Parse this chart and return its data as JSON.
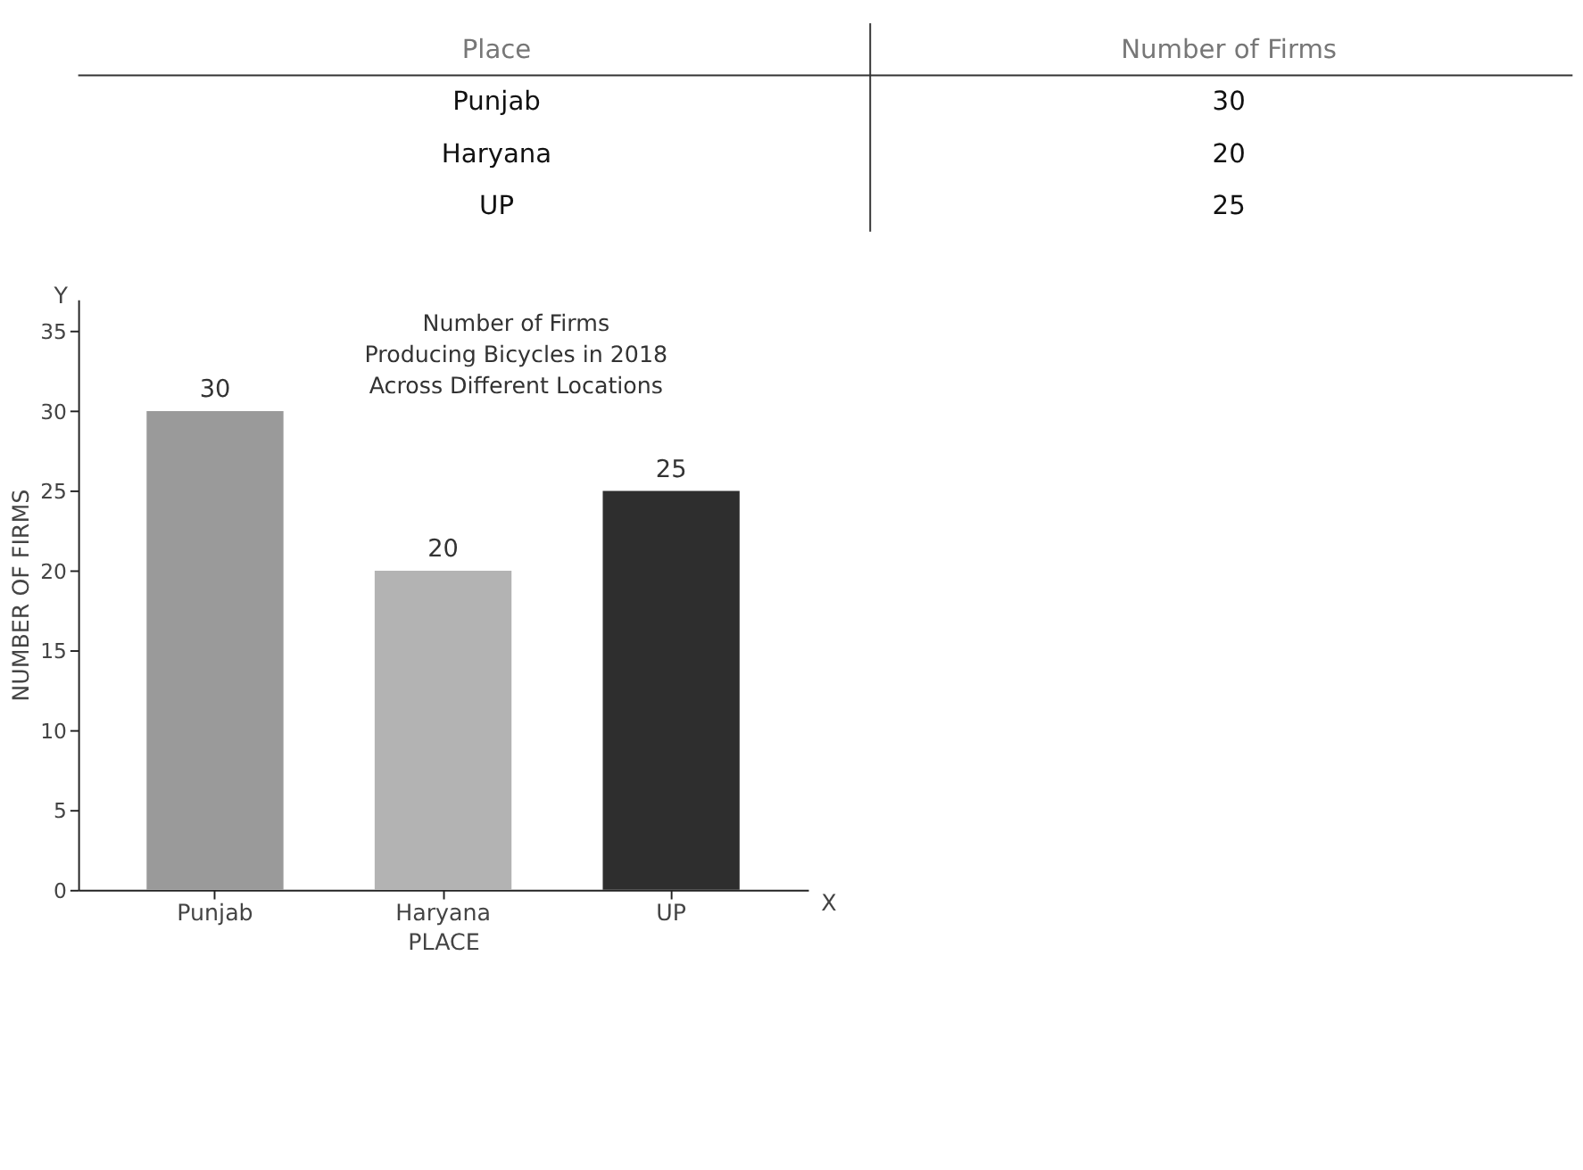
{
  "chart_data": {
    "type": "bar",
    "title": "Number of Firms\nProducing Bicycles in 2018\nAcross Different Locations",
    "xlabel": "PLACE",
    "ylabel": "NUMBER OF FIRMS",
    "categories": [
      "Punjab",
      "Haryana",
      "UP"
    ],
    "values": [
      30,
      20,
      25
    ],
    "colors": [
      "#9a9a9a",
      "#b3b3b3",
      "#2e2e2e"
    ],
    "ylim": [
      0,
      37
    ],
    "yticks": [
      0,
      5,
      10,
      15,
      20,
      25,
      30,
      35
    ],
    "value_labels": [
      "30",
      "20",
      "25"
    ],
    "grid": false,
    "annotations": [
      "Place",
      "Number of Firms",
      "Y",
      "X"
    ]
  }
}
